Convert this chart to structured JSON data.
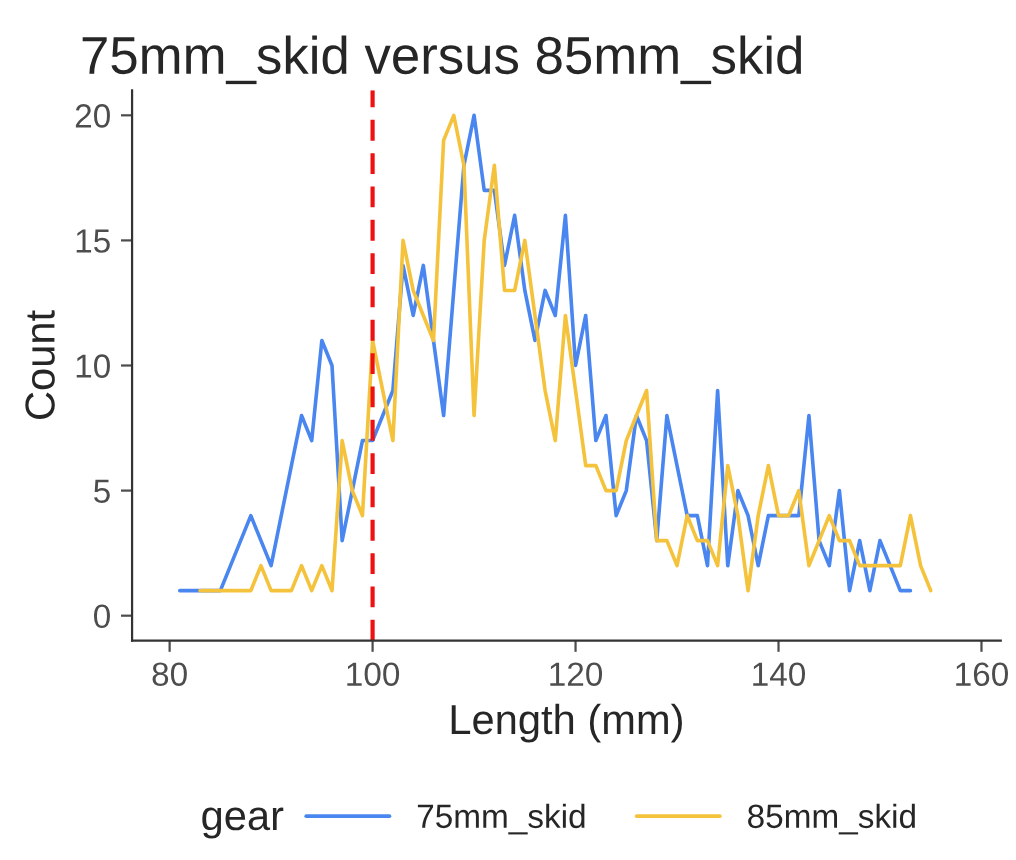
{
  "chart_data": {
    "type": "line",
    "title": "75mm_skid versus 85mm_skid",
    "xlabel": "Length (mm)",
    "ylabel": "Count",
    "legend_title": "gear",
    "series": [
      {
        "name": "75mm_skid",
        "color": "#4a86f0",
        "x": [
          81,
          82,
          83,
          84,
          85,
          86,
          87,
          88,
          89,
          90,
          91,
          92,
          93,
          94,
          95,
          96,
          97,
          98,
          99,
          100,
          101,
          102,
          103,
          104,
          105,
          106,
          107,
          108,
          109,
          110,
          111,
          112,
          113,
          114,
          115,
          116,
          117,
          118,
          119,
          120,
          121,
          122,
          123,
          124,
          125,
          126,
          127,
          128,
          129,
          130,
          131,
          132,
          133,
          134,
          135,
          136,
          137,
          138,
          139,
          140,
          141,
          142,
          143,
          144,
          145,
          146,
          147,
          148,
          149,
          150,
          151,
          152,
          153
        ],
        "values": [
          1,
          1,
          1,
          1,
          1,
          2,
          3,
          4,
          3,
          2,
          4,
          6,
          8,
          7,
          11,
          10,
          3,
          5,
          7,
          7,
          8,
          9,
          14,
          12,
          14,
          11,
          8,
          13,
          18,
          20,
          17,
          17,
          14,
          16,
          13,
          11,
          13,
          12,
          16,
          10,
          12,
          7,
          8,
          4,
          5,
          8,
          7,
          3,
          8,
          6,
          4,
          4,
          2,
          9,
          2,
          5,
          4,
          2,
          4,
          4,
          4,
          4,
          8,
          3,
          2,
          5,
          1,
          3,
          1,
          3,
          2,
          1,
          1
        ]
      },
      {
        "name": "85mm_skid",
        "color": "#f5c23c",
        "x": [
          83,
          84,
          85,
          86,
          87,
          88,
          89,
          90,
          91,
          92,
          93,
          94,
          95,
          96,
          97,
          98,
          99,
          100,
          101,
          102,
          103,
          104,
          105,
          106,
          107,
          108,
          109,
          110,
          111,
          112,
          113,
          114,
          115,
          116,
          117,
          118,
          119,
          120,
          121,
          122,
          123,
          124,
          125,
          126,
          127,
          128,
          129,
          130,
          131,
          132,
          133,
          134,
          135,
          136,
          137,
          138,
          139,
          140,
          141,
          142,
          143,
          144,
          145,
          146,
          147,
          148,
          149,
          150,
          151,
          152,
          153,
          154,
          155
        ],
        "values": [
          1,
          1,
          1,
          1,
          1,
          1,
          2,
          1,
          1,
          1,
          2,
          1,
          2,
          1,
          7,
          5,
          4,
          11,
          9,
          7,
          15,
          13,
          12,
          11,
          19,
          20,
          18,
          8,
          15,
          18,
          13,
          13,
          15,
          12,
          9,
          7,
          12,
          9,
          6,
          6,
          5,
          5,
          7,
          8,
          9,
          3,
          3,
          2,
          4,
          3,
          3,
          2,
          6,
          4,
          1,
          4,
          6,
          4,
          4,
          5,
          2,
          3,
          4,
          3,
          3,
          2,
          2,
          2,
          2,
          2,
          4,
          2,
          1
        ]
      }
    ],
    "ref_lines": [
      {
        "axis": "x",
        "value": 100,
        "color": "#ee1111",
        "line_style": "dashed"
      }
    ],
    "xlim": [
      76.3,
      161.9
    ],
    "xticks": [
      80,
      100,
      120,
      140,
      160
    ],
    "ylim": [
      -1,
      21
    ],
    "yticks": [
      0,
      5,
      10,
      15,
      20
    ],
    "grid": false,
    "legend": "bottom"
  }
}
